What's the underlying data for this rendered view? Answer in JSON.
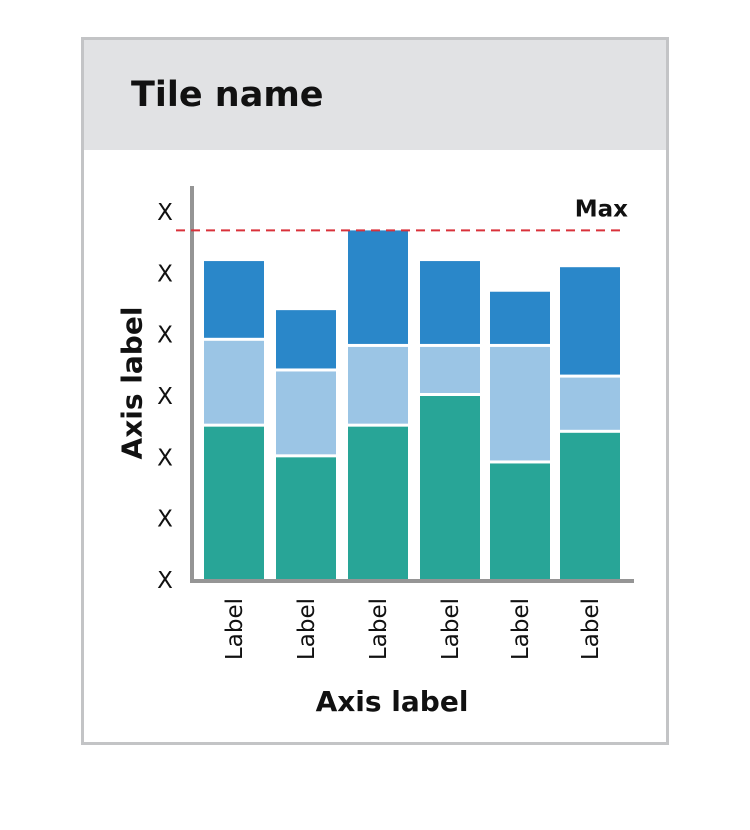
{
  "tile": {
    "title": "Tile name"
  },
  "colors": {
    "segment_bottom": "#28a597",
    "segment_middle": "#9bc5e5",
    "segment_top": "#2a87c9",
    "axis": "#959595",
    "max_line": "#d9323b"
  },
  "chart_data": {
    "type": "bar",
    "stacked": true,
    "categories": [
      "Label",
      "Label",
      "Label",
      "Label",
      "Label",
      "Label"
    ],
    "series": [
      {
        "values": [
          2.5,
          2.0,
          2.5,
          3.0,
          1.9,
          2.4
        ]
      },
      {
        "values": [
          1.4,
          1.4,
          1.3,
          0.8,
          1.9,
          0.9
        ]
      },
      {
        "values": [
          1.3,
          1.0,
          1.9,
          1.4,
          0.9,
          1.8
        ]
      }
    ],
    "y_tick_labels": [
      "X",
      "X",
      "X",
      "X",
      "X",
      "X",
      "X"
    ],
    "ylim": [
      0,
      6
    ],
    "max_value": 5.7,
    "max_label": "Max",
    "xlabel": "Axis label",
    "ylabel": "Axis label",
    "grid": false
  }
}
